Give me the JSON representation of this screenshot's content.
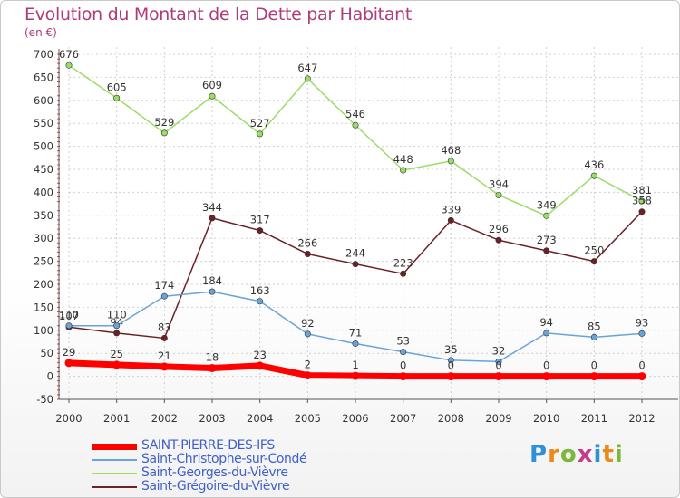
{
  "title": "Evolution du Montant de la Dette par Habitant",
  "subtitle": "(en €)",
  "logo_text": "Proxiti",
  "chart_data": {
    "type": "line",
    "title": "Evolution du Montant de la Dette par Habitant",
    "subtitle": "(en €)",
    "categories": [
      "2000",
      "2001",
      "2002",
      "2003",
      "2004",
      "2005",
      "2006",
      "2007",
      "2008",
      "2009",
      "2010",
      "2011",
      "2012"
    ],
    "ylim": [
      -50,
      700
    ],
    "yticks": [
      -50,
      0,
      50,
      100,
      150,
      200,
      250,
      300,
      350,
      400,
      450,
      500,
      550,
      600,
      650,
      700
    ],
    "grid": true,
    "legend_position": "bottom-left",
    "series": [
      {
        "name": "SAINT-PIERRE-DES-IFS",
        "color": "#ff0000",
        "width": 7,
        "values": [
          29,
          25,
          21,
          18,
          23,
          2,
          1,
          0,
          0,
          0,
          0,
          0,
          0
        ]
      },
      {
        "name": "Saint-Christophe-sur-Condé",
        "color": "#6aa3d8",
        "width": 1.5,
        "values": [
          110,
          110,
          174,
          184,
          163,
          92,
          71,
          53,
          35,
          32,
          94,
          85,
          93
        ]
      },
      {
        "name": "Saint-Georges-du-Vièvre",
        "color": "#99dd66",
        "width": 1.5,
        "values": [
          676,
          605,
          529,
          609,
          527,
          647,
          546,
          448,
          468,
          394,
          349,
          436,
          381
        ]
      },
      {
        "name": "Saint-Grégoire-du-Vièvre",
        "color": "#6b2226",
        "width": 1.5,
        "values": [
          107,
          94,
          83,
          344,
          317,
          266,
          244,
          223,
          339,
          296,
          273,
          250,
          358
        ]
      }
    ]
  }
}
